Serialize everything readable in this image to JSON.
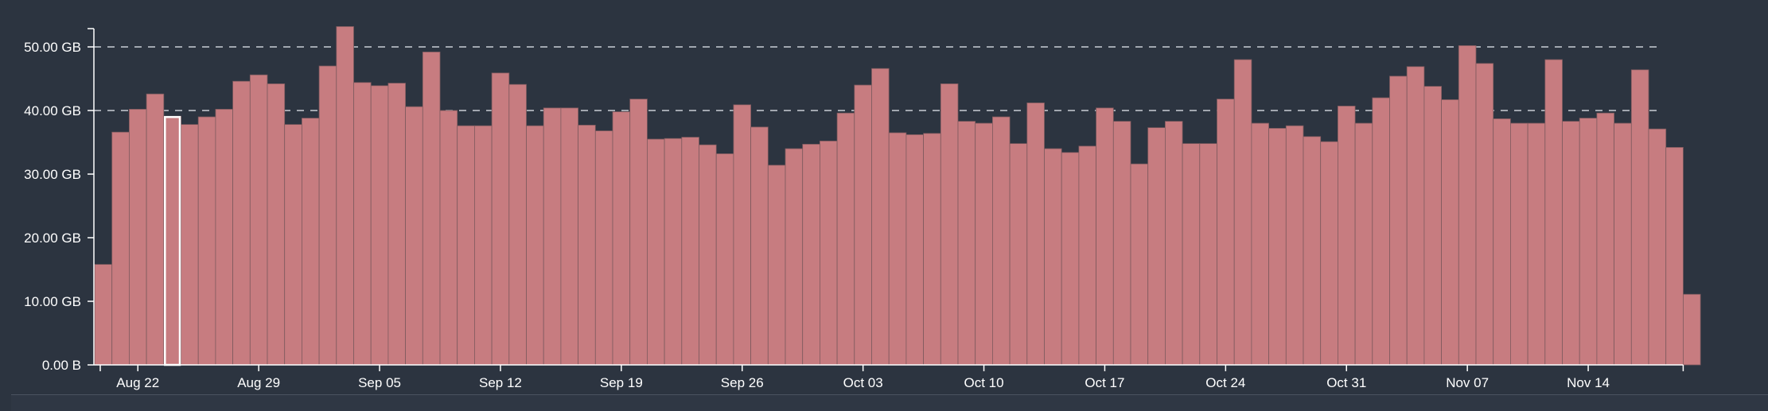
{
  "chart_data": {
    "type": "bar",
    "ylabel": "",
    "xlabel": "",
    "yunit": "GB",
    "ylim": [
      0,
      54
    ],
    "y_ticks": [
      {
        "value": 0,
        "label": "0.00 B"
      },
      {
        "value": 10,
        "label": "10.00 GB"
      },
      {
        "value": 20,
        "label": "20.00 GB"
      },
      {
        "value": 30,
        "label": "30.00 GB"
      },
      {
        "value": 40,
        "label": "40.00 GB"
      },
      {
        "value": 50,
        "label": "50.00 GB"
      }
    ],
    "gridlines": [
      40,
      50
    ],
    "start_date": "2023-08-20",
    "x_ticks": [
      {
        "index": 2,
        "label": "Aug 22"
      },
      {
        "index": 9,
        "label": "Aug 29"
      },
      {
        "index": 16,
        "label": "Sep 05"
      },
      {
        "index": 23,
        "label": "Sep 12"
      },
      {
        "index": 30,
        "label": "Sep 19"
      },
      {
        "index": 37,
        "label": "Sep 26"
      },
      {
        "index": 44,
        "label": "Oct 03"
      },
      {
        "index": 51,
        "label": "Oct 10"
      },
      {
        "index": 58,
        "label": "Oct 17"
      },
      {
        "index": 65,
        "label": "Oct 24"
      },
      {
        "index": 72,
        "label": "Oct 31"
      },
      {
        "index": 79,
        "label": "Nov 07"
      },
      {
        "index": 86,
        "label": "Nov 14"
      }
    ],
    "values": [
      15.8,
      36.6,
      40.2,
      42.6,
      39.1,
      37.8,
      39.0,
      40.2,
      44.6,
      45.6,
      44.2,
      37.8,
      38.8,
      47.0,
      53.2,
      44.4,
      43.9,
      44.3,
      40.6,
      49.2,
      40.0,
      37.6,
      37.6,
      45.9,
      44.1,
      37.6,
      40.4,
      40.4,
      37.7,
      36.8,
      39.8,
      41.8,
      35.5,
      35.6,
      35.8,
      34.6,
      33.2,
      40.9,
      37.4,
      31.4,
      34.0,
      34.7,
      35.2,
      39.6,
      44.0,
      46.6,
      36.5,
      36.2,
      36.4,
      44.2,
      38.3,
      38.0,
      39.0,
      34.8,
      41.2,
      34.0,
      33.4,
      34.4,
      40.4,
      38.3,
      31.6,
      37.3,
      38.3,
      34.8,
      34.8,
      41.8,
      48.0,
      38.0,
      37.2,
      37.6,
      35.9,
      35.1,
      40.7,
      38.0,
      42.0,
      45.4,
      46.9,
      43.8,
      41.7,
      50.2,
      47.4,
      38.7,
      38.0,
      38.0,
      48.0,
      38.3,
      38.8,
      39.6,
      38.0,
      46.4,
      37.1,
      34.2,
      11.1
    ],
    "selected_index": 4,
    "colors": {
      "bar": "#c77c80",
      "background": "#2c3440"
    }
  },
  "footer": {
    "labels": []
  }
}
